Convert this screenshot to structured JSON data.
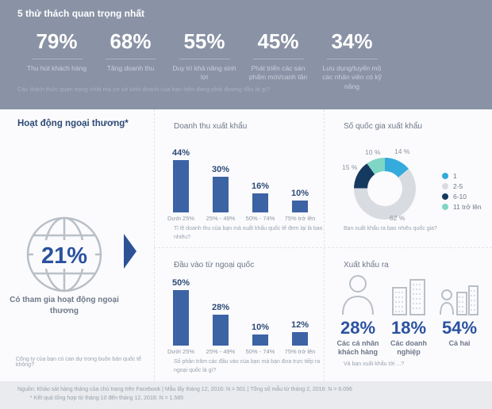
{
  "colors": {
    "hero_bg": "#8a92a5",
    "accent_blue": "#2b52a0",
    "bar_blue": "#3c63a4",
    "navy_text": "#2c4a75",
    "donut_blue": "#35aadd",
    "donut_gray": "#d8dbe0",
    "donut_navy": "#16395f",
    "donut_teal": "#7fd6c4"
  },
  "header": {
    "title": "5 thử thách quan trọng nhất",
    "caption": "Các thách thức quan trọng nhất mà cơ sở kinh doanh của bạn hiện đang phải đương đầu là gì?",
    "stats": [
      {
        "value": "79%",
        "label": "Thu hút khách hàng"
      },
      {
        "value": "68%",
        "label": "Tăng doanh thu"
      },
      {
        "value": "55%",
        "label": "Duy trì khả năng sinh lợi"
      },
      {
        "value": "45%",
        "label": "Phát triển các sản phẩm mới/canh tân"
      },
      {
        "value": "34%",
        "label": "Lưu dụng/tuyển mộ các nhân viên có kỹ năng"
      }
    ]
  },
  "section_title": "Hoạt động ngoại thương*",
  "participation": {
    "value": "21%",
    "label": "Có tham gia hoạt động ngoại thương",
    "caption": "Công ty của bạn có can dự trong buôn bán quốc tế không?"
  },
  "chart_data": [
    {
      "type": "bar",
      "title": "Doanh thu xuất khẩu",
      "categories": [
        "Dưới 25%",
        "25% - 49%",
        "50% - 74%",
        "75% trở lên"
      ],
      "values": [
        44,
        30,
        16,
        10
      ],
      "unit": "%",
      "ylim": [
        0,
        50
      ],
      "caption": "Tỉ lệ doanh thu của bạn mà xuất khẩu quốc tế đem lại là bao nhiêu?"
    },
    {
      "type": "pie",
      "style": "donut",
      "title": "Số quốc gia xuất khẩu",
      "legend_position": "right",
      "segments": [
        {
          "label": "1",
          "value": 14,
          "color": "#35aadd"
        },
        {
          "label": "2-5",
          "value": 62,
          "color": "#d8dbe0"
        },
        {
          "label": "6-10",
          "value": 15,
          "color": "#16395f"
        },
        {
          "label": "11 trở lên",
          "value": 10,
          "color": "#7fd6c4"
        }
      ],
      "unit": "%",
      "caption": "Bạn xuất khẩu ra bao nhiêu quốc gia?"
    },
    {
      "type": "bar",
      "title": "Đầu vào từ ngoại quốc",
      "categories": [
        "Dưới 25%",
        "25% - 49%",
        "50% - 74%",
        "75% trở lên"
      ],
      "values": [
        50,
        28,
        10,
        12
      ],
      "unit": "%",
      "ylim": [
        0,
        55
      ],
      "caption": "Số phần trăm các đầu vào của bạn mà bạn đưa trực tiếp ra ngoại quốc là gì?"
    }
  ],
  "export_to": {
    "title": "Xuất khẩu ra",
    "items": [
      {
        "icon": "person-icon",
        "value": "28%",
        "label": "Các cá nhân khách hàng"
      },
      {
        "icon": "buildings-icon",
        "value": "18%",
        "label": "Các doanh nghiệp"
      },
      {
        "icon": "person-building-icon",
        "value": "54%",
        "label": "Cả hai"
      }
    ],
    "caption": "Và bạn xuất khẩu tới ...?"
  },
  "footer": {
    "line1": "Nguồn: Khảo sát hàng tháng của chủ trang trên Facebook | Mẫu lấy tháng 12, 2016: N = 501 | Tổng số mẫu từ tháng 2, 2016: N = 6.096",
    "line2": "* Kết quả tổng hợp từ tháng 10 đến tháng 12, 2016: N = 1.585"
  }
}
